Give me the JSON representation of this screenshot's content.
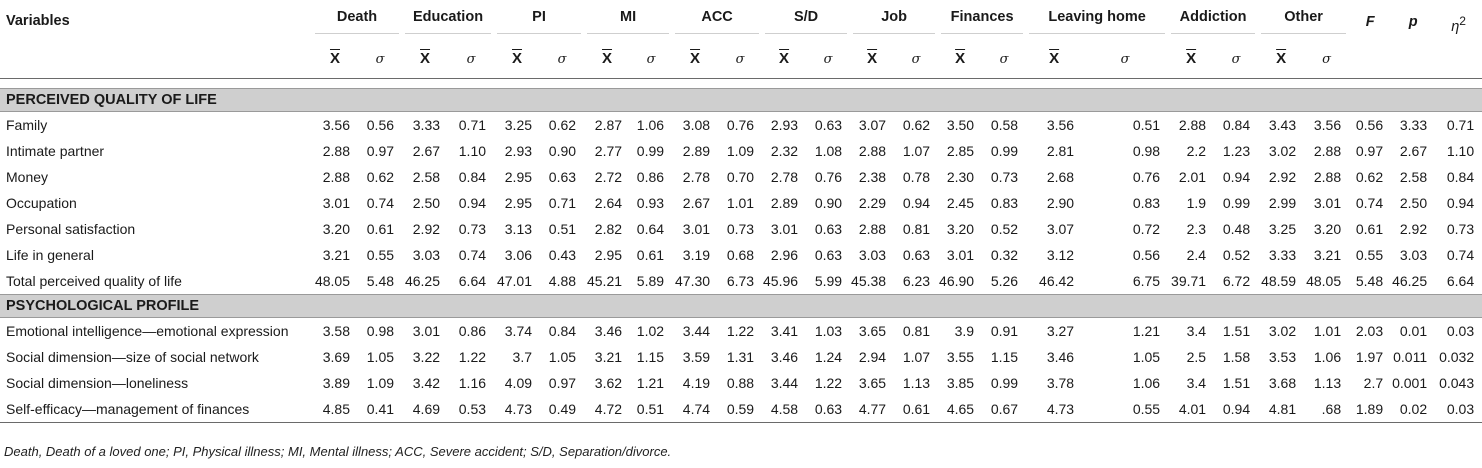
{
  "header": {
    "variables_label": "Variables",
    "groups": [
      "Death",
      "Education",
      "PI",
      "MI",
      "ACC",
      "S/D",
      "Job",
      "Finances",
      "Leaving home",
      "Addiction",
      "Other"
    ],
    "stats": [
      "F",
      "p",
      "η2"
    ],
    "mean_symbol": "X",
    "sd_symbol": "σ"
  },
  "sections": [
    {
      "title": "PERCEIVED QUALITY OF LIFE",
      "rows": [
        {
          "label": "Family",
          "values": [
            "3.56",
            "0.56",
            "3.33",
            "0.71",
            "3.25",
            "0.62",
            "2.87",
            "1.06",
            "3.08",
            "0.76",
            "2.93",
            "0.63",
            "3.07",
            "0.62",
            "3.50",
            "0.58",
            "3.56",
            "0.51",
            "2.88",
            "0.84",
            "3.43",
            "3.56",
            "0.56",
            "3.33",
            "0.71"
          ]
        },
        {
          "label": "Intimate partner",
          "values": [
            "2.88",
            "0.97",
            "2.67",
            "1.10",
            "2.93",
            "0.90",
            "2.77",
            "0.99",
            "2.89",
            "1.09",
            "2.32",
            "1.08",
            "2.88",
            "1.07",
            "2.85",
            "0.99",
            "2.81",
            "0.98",
            "2.2",
            "1.23",
            "3.02",
            "2.88",
            "0.97",
            "2.67",
            "1.10"
          ]
        },
        {
          "label": "Money",
          "values": [
            "2.88",
            "0.62",
            "2.58",
            "0.84",
            "2.95",
            "0.63",
            "2.72",
            "0.86",
            "2.78",
            "0.70",
            "2.78",
            "0.76",
            "2.38",
            "0.78",
            "2.30",
            "0.73",
            "2.68",
            "0.76",
            "2.01",
            "0.94",
            "2.92",
            "2.88",
            "0.62",
            "2.58",
            "0.84"
          ]
        },
        {
          "label": "Occupation",
          "values": [
            "3.01",
            "0.74",
            "2.50",
            "0.94",
            "2.95",
            "0.71",
            "2.64",
            "0.93",
            "2.67",
            "1.01",
            "2.89",
            "0.90",
            "2.29",
            "0.94",
            "2.45",
            "0.83",
            "2.90",
            "0.83",
            "1.9",
            "0.99",
            "2.99",
            "3.01",
            "0.74",
            "2.50",
            "0.94"
          ]
        },
        {
          "label": "Personal satisfaction",
          "values": [
            "3.20",
            "0.61",
            "2.92",
            "0.73",
            "3.13",
            "0.51",
            "2.82",
            "0.64",
            "3.01",
            "0.73",
            "3.01",
            "0.63",
            "2.88",
            "0.81",
            "3.20",
            "0.52",
            "3.07",
            "0.72",
            "2.3",
            "0.48",
            "3.25",
            "3.20",
            "0.61",
            "2.92",
            "0.73"
          ]
        },
        {
          "label": "Life in general",
          "values": [
            "3.21",
            "0.55",
            "3.03",
            "0.74",
            "3.06",
            "0.43",
            "2.95",
            "0.61",
            "3.19",
            "0.68",
            "2.96",
            "0.63",
            "3.03",
            "0.63",
            "3.01",
            "0.32",
            "3.12",
            "0.56",
            "2.4",
            "0.52",
            "3.33",
            "3.21",
            "0.55",
            "3.03",
            "0.74"
          ]
        },
        {
          "label": "Total perceived quality of life",
          "values": [
            "48.05",
            "5.48",
            "46.25",
            "6.64",
            "47.01",
            "4.88",
            "45.21",
            "5.89",
            "47.30",
            "6.73",
            "45.96",
            "5.99",
            "45.38",
            "6.23",
            "46.90",
            "5.26",
            "46.42",
            "6.75",
            "39.71",
            "6.72",
            "48.59",
            "48.05",
            "5.48",
            "46.25",
            "6.64"
          ]
        }
      ]
    },
    {
      "title": "PSYCHOLOGICAL PROFILE",
      "rows": [
        {
          "label": "Emotional intelligence—emotional expression",
          "values": [
            "3.58",
            "0.98",
            "3.01",
            "0.86",
            "3.74",
            "0.84",
            "3.46",
            "1.02",
            "3.44",
            "1.22",
            "3.41",
            "1.03",
            "3.65",
            "0.81",
            "3.9",
            "0.91",
            "3.27",
            "1.21",
            "3.4",
            "1.51",
            "3.02",
            "1.01",
            "2.03",
            "0.01",
            "0.03"
          ]
        },
        {
          "label": "Social dimension—size of social network",
          "values": [
            "3.69",
            "1.05",
            "3.22",
            "1.22",
            "3.7",
            "1.05",
            "3.21",
            "1.15",
            "3.59",
            "1.31",
            "3.46",
            "1.24",
            "2.94",
            "1.07",
            "3.55",
            "1.15",
            "3.46",
            "1.05",
            "2.5",
            "1.58",
            "3.53",
            "1.06",
            "1.97",
            "0.011",
            "0.032"
          ]
        },
        {
          "label": "Social dimension—loneliness",
          "values": [
            "3.89",
            "1.09",
            "3.42",
            "1.16",
            "4.09",
            "0.97",
            "3.62",
            "1.21",
            "4.19",
            "0.88",
            "3.44",
            "1.22",
            "3.65",
            "1.13",
            "3.85",
            "0.99",
            "3.78",
            "1.06",
            "3.4",
            "1.51",
            "3.68",
            "1.13",
            "2.7",
            "0.001",
            "0.043"
          ]
        },
        {
          "label": "Self-efficacy—management of finances",
          "values": [
            "4.85",
            "0.41",
            "4.69",
            "0.53",
            "4.73",
            "0.49",
            "4.72",
            "0.51",
            "4.74",
            "0.59",
            "4.58",
            "0.63",
            "4.77",
            "0.61",
            "4.65",
            "0.67",
            "4.73",
            "0.55",
            "4.01",
            "0.94",
            "4.81",
            ".68",
            "1.89",
            "0.02",
            "0.03"
          ]
        }
      ]
    }
  ],
  "footnote": "Death, Death of a loved one; PI, Physical illness; MI, Mental illness; ACC, Severe accident; S/D, Separation/divorce."
}
